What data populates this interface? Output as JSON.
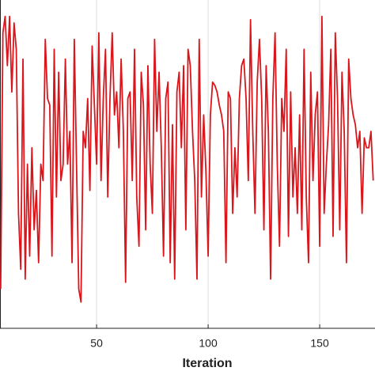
{
  "chart_data": {
    "type": "line",
    "xlabel": "Iteration",
    "x": [
      7,
      8,
      9,
      10,
      11,
      12,
      13,
      14,
      15,
      16,
      17,
      18,
      19,
      20,
      21,
      22,
      23,
      24,
      25,
      26,
      27,
      28,
      29,
      30,
      31,
      32,
      33,
      34,
      35,
      36,
      37,
      38,
      39,
      40,
      41,
      42,
      43,
      44,
      45,
      46,
      47,
      48,
      49,
      50,
      51,
      52,
      53,
      54,
      55,
      56,
      57,
      58,
      59,
      60,
      61,
      62,
      63,
      64,
      65,
      66,
      67,
      68,
      69,
      70,
      71,
      72,
      73,
      74,
      75,
      76,
      77,
      78,
      79,
      80,
      81,
      82,
      83,
      84,
      85,
      86,
      87,
      88,
      89,
      90,
      91,
      92,
      93,
      94,
      95,
      96,
      97,
      98,
      99,
      100,
      101,
      102,
      103,
      104,
      105,
      106,
      107,
      108,
      109,
      110,
      111,
      112,
      113,
      114,
      115,
      116,
      117,
      118,
      119,
      120,
      121,
      122,
      123,
      124,
      125,
      126,
      127,
      128,
      129,
      130,
      131,
      132,
      133,
      134,
      135,
      136,
      137,
      138,
      139,
      140,
      141,
      142,
      143,
      144,
      145,
      146,
      147,
      148,
      149,
      150,
      151,
      152,
      153,
      154,
      155,
      156,
      157,
      158,
      159,
      160,
      161,
      162,
      163,
      164,
      165,
      166,
      167,
      168,
      169,
      170,
      171,
      172,
      173,
      174
    ],
    "series": [
      {
        "color": "#d9161c",
        "values": [
          0.12,
          0.9,
          0.95,
          0.8,
          0.95,
          0.72,
          0.93,
          0.85,
          0.35,
          0.18,
          0.82,
          0.15,
          0.5,
          0.22,
          0.55,
          0.3,
          0.42,
          0.2,
          0.5,
          0.45,
          0.88,
          0.7,
          0.68,
          0.22,
          0.85,
          0.4,
          0.78,
          0.45,
          0.5,
          0.82,
          0.5,
          0.6,
          0.2,
          0.88,
          0.5,
          0.12,
          0.08,
          0.6,
          0.55,
          0.7,
          0.42,
          0.86,
          0.68,
          0.5,
          0.9,
          0.45,
          0.7,
          0.85,
          0.4,
          0.7,
          0.9,
          0.65,
          0.72,
          0.55,
          0.82,
          0.6,
          0.14,
          0.7,
          0.72,
          0.45,
          0.85,
          0.4,
          0.25,
          0.78,
          0.68,
          0.3,
          0.8,
          0.5,
          0.35,
          0.88,
          0.6,
          0.78,
          0.55,
          0.22,
          0.7,
          0.75,
          0.2,
          0.62,
          0.15,
          0.72,
          0.78,
          0.55,
          0.8,
          0.3,
          0.85,
          0.8,
          0.6,
          0.45,
          0.15,
          0.88,
          0.4,
          0.65,
          0.48,
          0.22,
          0.65,
          0.75,
          0.74,
          0.72,
          0.68,
          0.65,
          0.6,
          0.2,
          0.72,
          0.7,
          0.35,
          0.55,
          0.4,
          0.7,
          0.8,
          0.82,
          0.7,
          0.45,
          0.94,
          0.6,
          0.35,
          0.75,
          0.88,
          0.7,
          0.3,
          0.8,
          0.6,
          0.15,
          0.7,
          0.9,
          0.5,
          0.25,
          0.7,
          0.6,
          0.85,
          0.28,
          0.72,
          0.4,
          0.55,
          0.35,
          0.65,
          0.3,
          0.85,
          0.4,
          0.2,
          0.78,
          0.45,
          0.65,
          0.72,
          0.25,
          0.95,
          0.35,
          0.5,
          0.62,
          0.85,
          0.28,
          0.9,
          0.7,
          0.3,
          0.78,
          0.6,
          0.2,
          0.82,
          0.7,
          0.65,
          0.62,
          0.55,
          0.6,
          0.35,
          0.58,
          0.55,
          0.55,
          0.6,
          0.45
        ]
      }
    ],
    "xlim": [
      6.7,
      174.8
    ],
    "xticks": [
      50,
      100,
      150
    ],
    "ylim": [
      0,
      1
    ],
    "grid": true
  }
}
